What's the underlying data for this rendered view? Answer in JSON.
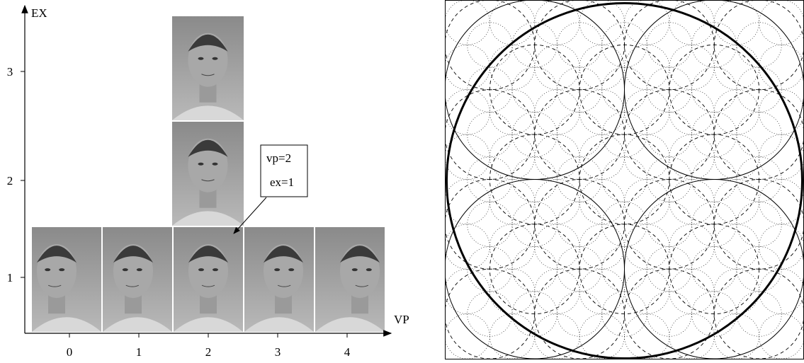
{
  "left": {
    "y_axis_label": "EX",
    "x_axis_label": "VP",
    "x_ticks": [
      "0",
      "1",
      "2",
      "3",
      "4"
    ],
    "y_ticks": [
      "1",
      "2",
      "3"
    ],
    "callout": [
      "vp=2",
      "ex=1"
    ]
  }
}
